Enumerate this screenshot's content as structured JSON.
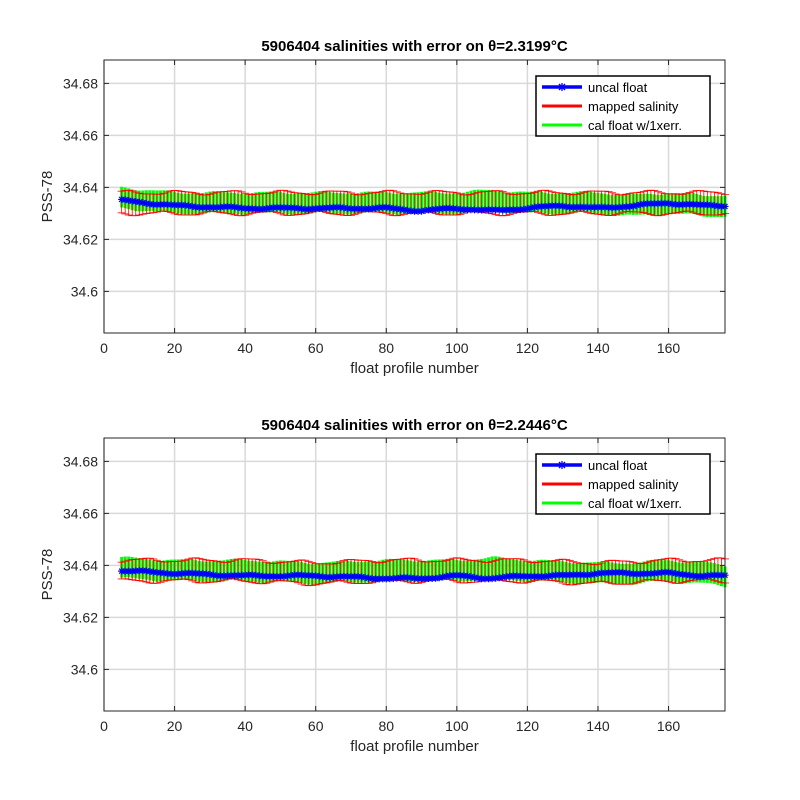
{
  "chart_data": [
    {
      "type": "line",
      "title": "5906404 salinities with error on θ=2.3199°C",
      "xlabel": "float profile number",
      "ylabel": "PSS-78",
      "xlim": [
        0,
        176
      ],
      "ylim": [
        34.584,
        34.689
      ],
      "xticks": [
        0,
        20,
        40,
        60,
        80,
        100,
        120,
        140,
        160
      ],
      "yticks": [
        34.6,
        34.62,
        34.64,
        34.66,
        34.68
      ],
      "ytick_labels": [
        "34.6",
        "34.62",
        "34.64",
        "34.66",
        "34.68"
      ],
      "grid": true,
      "legend_position": "top-right",
      "series": [
        {
          "name": "uncal float",
          "color": "#0000ff",
          "x": [
            5,
            20,
            40,
            60,
            80,
            90,
            100,
            110,
            120,
            130,
            140,
            150,
            160,
            170,
            176
          ],
          "y": [
            34.635,
            34.633,
            34.632,
            34.632,
            34.632,
            34.631,
            34.632,
            34.631,
            34.632,
            34.633,
            34.632,
            34.633,
            34.634,
            34.633,
            34.633
          ]
        },
        {
          "name": "mapped salinity",
          "color": "#ff0000",
          "x": [
            5,
            20,
            40,
            60,
            80,
            100,
            120,
            140,
            160,
            176
          ],
          "y": [
            34.634,
            34.634,
            34.634,
            34.634,
            34.634,
            34.634,
            34.634,
            34.634,
            34.634,
            34.634
          ],
          "error": 0.004
        },
        {
          "name": "cal float w/1xerr.",
          "color": "#00ff00",
          "x": [
            5,
            20,
            40,
            60,
            80,
            100,
            110,
            120,
            140,
            150,
            160,
            170,
            176
          ],
          "y": [
            34.636,
            34.634,
            34.634,
            34.634,
            34.634,
            34.634,
            34.635,
            34.634,
            34.634,
            34.633,
            34.634,
            34.633,
            34.633
          ],
          "error": 0.004
        }
      ]
    },
    {
      "type": "line",
      "title": "5906404 salinities with error on θ=2.2446°C",
      "xlabel": "float profile number",
      "ylabel": "PSS-78",
      "xlim": [
        0,
        176
      ],
      "ylim": [
        34.584,
        34.689
      ],
      "xticks": [
        0,
        20,
        40,
        60,
        80,
        100,
        120,
        140,
        160
      ],
      "yticks": [
        34.6,
        34.62,
        34.64,
        34.66,
        34.68
      ],
      "ytick_labels": [
        "34.6",
        "34.62",
        "34.64",
        "34.66",
        "34.68"
      ],
      "grid": true,
      "legend_position": "top-right",
      "series": [
        {
          "name": "uncal float",
          "color": "#0000ff",
          "x": [
            5,
            20,
            40,
            60,
            80,
            90,
            100,
            110,
            120,
            130,
            140,
            150,
            160,
            170,
            176
          ],
          "y": [
            34.638,
            34.637,
            34.636,
            34.636,
            34.635,
            34.635,
            34.636,
            34.635,
            34.636,
            34.636,
            34.637,
            34.637,
            34.637,
            34.636,
            34.636
          ]
        },
        {
          "name": "mapped salinity",
          "color": "#ff0000",
          "x": [
            5,
            20,
            40,
            60,
            80,
            100,
            120,
            140,
            160,
            176
          ],
          "y": [
            34.638,
            34.638,
            34.638,
            34.637,
            34.638,
            34.638,
            34.638,
            34.637,
            34.638,
            34.638
          ],
          "error": 0.004
        },
        {
          "name": "cal float w/1xerr.",
          "color": "#00ff00",
          "x": [
            5,
            20,
            40,
            60,
            80,
            100,
            110,
            120,
            140,
            150,
            160,
            170,
            176
          ],
          "y": [
            34.639,
            34.638,
            34.638,
            34.637,
            34.638,
            34.638,
            34.639,
            34.638,
            34.637,
            34.637,
            34.638,
            34.637,
            34.636
          ],
          "error": 0.004
        }
      ]
    }
  ]
}
